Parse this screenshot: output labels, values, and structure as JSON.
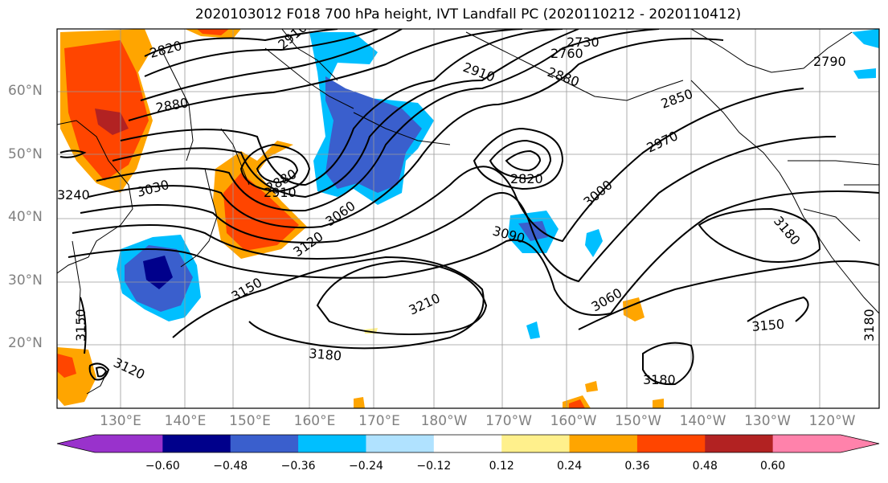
{
  "title": "2020103012 F018 700 hPa height, IVT Landfall PC (2020110212 - 2020110412)",
  "lat_labels": [
    {
      "text": "60°N",
      "lat": 60
    },
    {
      "text": "50°N",
      "lat": 50
    },
    {
      "text": "40°N",
      "lat": 40
    },
    {
      "text": "30°N",
      "lat": 30
    },
    {
      "text": "20°N",
      "lat": 20
    }
  ],
  "lon_labels": [
    {
      "text": "130°E",
      "lon": 130
    },
    {
      "text": "140°E",
      "lon": 140
    },
    {
      "text": "150°E",
      "lon": 150
    },
    {
      "text": "160°E",
      "lon": 160
    },
    {
      "text": "170°E",
      "lon": 170
    },
    {
      "text": "180°W",
      "lon": 180
    },
    {
      "text": "170°W",
      "lon": 190
    },
    {
      "text": "160°W",
      "lon": 200
    },
    {
      "text": "150°W",
      "lon": 210
    },
    {
      "text": "140°W",
      "lon": 220
    },
    {
      "text": "130°W",
      "lon": 230
    },
    {
      "text": "120°W",
      "lon": 240
    }
  ],
  "contour_labels": [
    "2730",
    "2760",
    "2790",
    "2820",
    "2820",
    "2850",
    "2880",
    "2880",
    "2880",
    "2910",
    "2910",
    "2910",
    "2970",
    "3000",
    "3030",
    "3060",
    "3060",
    "3090",
    "3120",
    "3120",
    "3150",
    "3150",
    "3150",
    "3180",
    "3180",
    "3180",
    "3180",
    "3210",
    "3240"
  ],
  "colorbar": {
    "ticks": [
      "−0.60",
      "−0.48",
      "−0.36",
      "−0.24",
      "−0.12",
      "0.12",
      "0.24",
      "0.36",
      "0.48",
      "0.60"
    ],
    "colors": [
      "#9932cc",
      "#00008b",
      "#3a5fcd",
      "#00bfff",
      "#b0e2ff",
      "#ffffff",
      "#fff08c",
      "#ffa500",
      "#ff4500",
      "#b22222",
      "#ff82ab"
    ]
  }
}
